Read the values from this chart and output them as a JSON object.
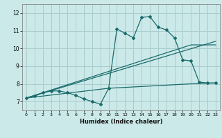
{
  "title": "",
  "xlabel": "Humidex (Indice chaleur)",
  "xlim": [
    -0.5,
    23.5
  ],
  "ylim": [
    6.5,
    12.5
  ],
  "bg_color": "#cce9e9",
  "grid_color": "#aacccc",
  "line_color": "#1a6b6b",
  "line1_x": [
    0,
    1,
    2,
    3,
    4,
    5,
    6,
    7,
    8,
    9,
    10,
    11,
    12,
    13,
    14,
    15,
    16,
    17,
    18,
    19,
    20,
    21,
    22,
    23
  ],
  "line1_y": [
    7.2,
    7.3,
    7.5,
    7.6,
    7.6,
    7.5,
    7.35,
    7.15,
    7.0,
    6.85,
    7.75,
    11.1,
    10.85,
    10.6,
    11.75,
    11.8,
    11.2,
    11.05,
    10.6,
    9.35,
    9.3,
    8.1,
    8.05,
    8.05
  ],
  "line2_x": [
    0,
    23
  ],
  "line2_y": [
    7.2,
    10.4
  ],
  "line3_x": [
    0,
    20,
    23
  ],
  "line3_y": [
    7.2,
    10.2,
    10.2
  ],
  "line4_x": [
    0,
    10,
    20,
    23
  ],
  "line4_y": [
    7.2,
    7.75,
    8.0,
    8.05
  ],
  "xticks": [
    0,
    1,
    2,
    3,
    4,
    5,
    6,
    7,
    8,
    9,
    10,
    11,
    12,
    13,
    14,
    15,
    16,
    17,
    18,
    19,
    20,
    21,
    22,
    23
  ],
  "yticks": [
    7,
    8,
    9,
    10,
    11,
    12
  ]
}
